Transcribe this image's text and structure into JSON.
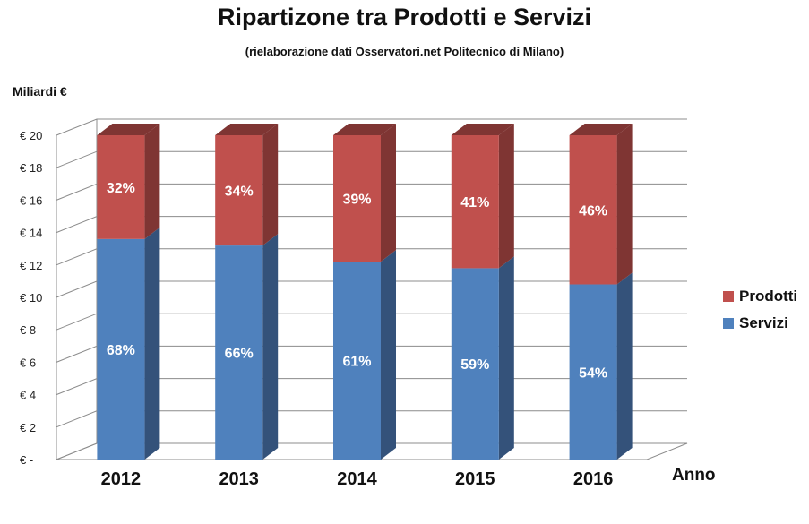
{
  "chart_data": {
    "type": "bar",
    "stacked": true,
    "percent_labels": true,
    "title": "Ripartizone tra Prodotti e Servizi",
    "subtitle": "(rielaborazione dati  Osservatori.net Politecnico di Milano)",
    "ylabel": "Miliardi €",
    "xlabel": "Anno",
    "ylim": [
      0,
      20
    ],
    "yticks": [
      "€ -",
      "€ 2",
      "€ 4",
      "€ 6",
      "€ 8",
      "€ 10",
      "€ 12",
      "€ 14",
      "€ 16",
      "€ 18",
      "€ 20"
    ],
    "categories": [
      "2012",
      "2013",
      "2014",
      "2015",
      "2016"
    ],
    "series": [
      {
        "name": "Servizi",
        "values": [
          13.6,
          13.2,
          12.2,
          11.8,
          10.8
        ],
        "labels": [
          "68%",
          "66%",
          "61%",
          "59%",
          "54%"
        ],
        "color": "#4f81bd",
        "side_color": "#34527a"
      },
      {
        "name": "Prodotti",
        "values": [
          6.4,
          6.8,
          7.8,
          8.2,
          9.2
        ],
        "labels": [
          "32%",
          "34%",
          "39%",
          "41%",
          "46%"
        ],
        "color": "#c0504d",
        "side_color": "#7f3533"
      }
    ],
    "legend": [
      {
        "name": "Prodotti",
        "color": "#c0504d"
      },
      {
        "name": "Servizi",
        "color": "#4f81bd"
      }
    ],
    "legend_position": "right",
    "grid": true,
    "three_d": true
  }
}
